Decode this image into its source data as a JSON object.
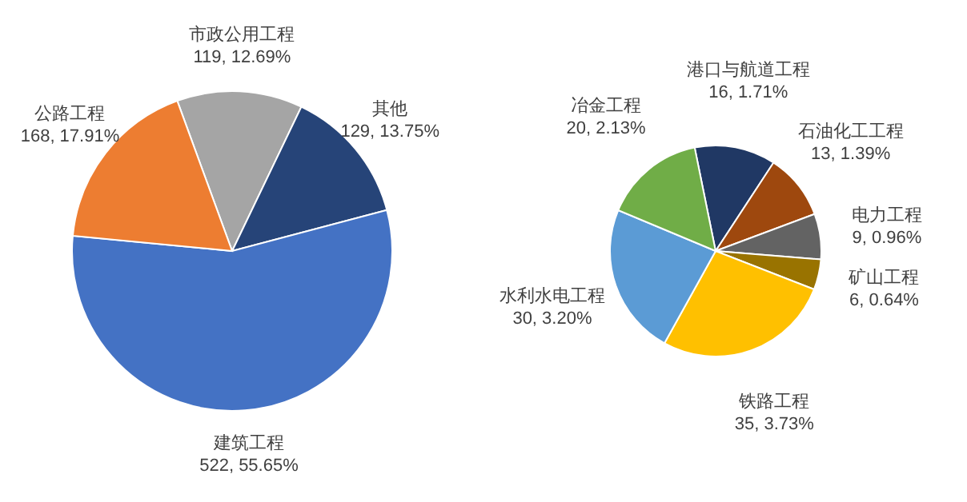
{
  "chart_data": [
    {
      "type": "pie",
      "categories": [
        "市政公用工程",
        "其他",
        "建筑工程",
        "公路工程"
      ],
      "values": [
        119,
        129,
        522,
        168
      ],
      "colors": [
        "#a5a5a5",
        "#264478",
        "#4472c4",
        "#ed7d31"
      ],
      "value_labels": [
        "119, 12.69%",
        "129, 13.75%",
        "522, 55.65%",
        "168, 17.91%"
      ]
    },
    {
      "type": "pie",
      "categories": [
        "港口与航道工程",
        "石油化工工程",
        "电力工程",
        "矿山工程",
        "铁路工程",
        "水利水电工程",
        "冶金工程"
      ],
      "values": [
        16,
        13,
        9,
        6,
        35,
        30,
        20
      ],
      "colors": [
        "#203864",
        "#9e480e",
        "#636363",
        "#997300",
        "#ffc000",
        "#5b9bd5",
        "#70ad47"
      ],
      "value_labels": [
        "16, 1.71%",
        "13, 1.39%",
        "9, 0.96%",
        "6, 0.64%",
        "35, 3.73%",
        "30, 3.20%",
        "20, 2.13%"
      ]
    }
  ]
}
